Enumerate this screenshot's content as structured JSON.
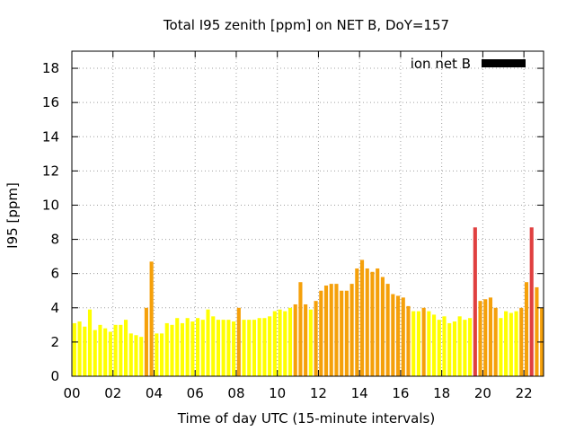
{
  "chart_data": {
    "type": "bar",
    "title": "Total I95 zenith [ppm] on NET B, DoY=157",
    "xlabel": "Time of day UTC (15-minute intervals)",
    "ylabel": "I95 [ppm]",
    "xlim": [
      0,
      22.75
    ],
    "ylim": [
      0,
      19
    ],
    "yticks": [
      0,
      2,
      4,
      6,
      8,
      10,
      12,
      14,
      16,
      18
    ],
    "xticks": [
      {
        "value": 0,
        "label": "00"
      },
      {
        "value": 2,
        "label": "02"
      },
      {
        "value": 4,
        "label": "04"
      },
      {
        "value": 6,
        "label": "06"
      },
      {
        "value": 8,
        "label": "08"
      },
      {
        "value": 10,
        "label": "10"
      },
      {
        "value": 12,
        "label": "12"
      },
      {
        "value": 14,
        "label": "14"
      },
      {
        "value": 16,
        "label": "16"
      },
      {
        "value": 18,
        "label": "18"
      },
      {
        "value": 20,
        "label": "20"
      },
      {
        "value": 22,
        "label": "22"
      }
    ],
    "grid": true,
    "legend": {
      "position": "top-right",
      "entries": [
        {
          "name": "ion net B",
          "color": "#000000"
        }
      ]
    },
    "interval_hours": 0.25,
    "colors": {
      "low": "#ffff00",
      "mid": "#f5a00a",
      "high": "#e04040",
      "frame": "#000000",
      "grid": "#a0a0a0"
    },
    "bars": [
      {
        "t": 0.0,
        "v": 3.1,
        "level": "low"
      },
      {
        "t": 0.25,
        "v": 3.2,
        "level": "low"
      },
      {
        "t": 0.5,
        "v": 2.9,
        "level": "low"
      },
      {
        "t": 0.75,
        "v": 3.9,
        "level": "low"
      },
      {
        "t": 1.0,
        "v": 2.7,
        "level": "low"
      },
      {
        "t": 1.25,
        "v": 3.0,
        "level": "low"
      },
      {
        "t": 1.5,
        "v": 2.8,
        "level": "low"
      },
      {
        "t": 1.75,
        "v": 2.6,
        "level": "low"
      },
      {
        "t": 2.0,
        "v": 3.0,
        "level": "low"
      },
      {
        "t": 2.25,
        "v": 3.0,
        "level": "low"
      },
      {
        "t": 2.5,
        "v": 3.3,
        "level": "low"
      },
      {
        "t": 2.75,
        "v": 2.5,
        "level": "low"
      },
      {
        "t": 3.0,
        "v": 2.4,
        "level": "low"
      },
      {
        "t": 3.25,
        "v": 2.3,
        "level": "low"
      },
      {
        "t": 3.5,
        "v": 4.0,
        "level": "mid"
      },
      {
        "t": 3.75,
        "v": 6.7,
        "level": "mid"
      },
      {
        "t": 4.0,
        "v": 2.5,
        "level": "low"
      },
      {
        "t": 4.25,
        "v": 2.5,
        "level": "low"
      },
      {
        "t": 4.5,
        "v": 3.1,
        "level": "low"
      },
      {
        "t": 4.75,
        "v": 3.0,
        "level": "low"
      },
      {
        "t": 5.0,
        "v": 3.4,
        "level": "low"
      },
      {
        "t": 5.25,
        "v": 3.1,
        "level": "low"
      },
      {
        "t": 5.5,
        "v": 3.4,
        "level": "low"
      },
      {
        "t": 5.75,
        "v": 3.2,
        "level": "low"
      },
      {
        "t": 6.0,
        "v": 3.4,
        "level": "low"
      },
      {
        "t": 6.25,
        "v": 3.3,
        "level": "low"
      },
      {
        "t": 6.5,
        "v": 3.9,
        "level": "low"
      },
      {
        "t": 6.75,
        "v": 3.5,
        "level": "low"
      },
      {
        "t": 7.0,
        "v": 3.3,
        "level": "low"
      },
      {
        "t": 7.25,
        "v": 3.3,
        "level": "low"
      },
      {
        "t": 7.5,
        "v": 3.3,
        "level": "low"
      },
      {
        "t": 7.75,
        "v": 3.2,
        "level": "low"
      },
      {
        "t": 8.0,
        "v": 4.0,
        "level": "mid"
      },
      {
        "t": 8.25,
        "v": 3.3,
        "level": "low"
      },
      {
        "t": 8.5,
        "v": 3.3,
        "level": "low"
      },
      {
        "t": 8.75,
        "v": 3.3,
        "level": "low"
      },
      {
        "t": 9.0,
        "v": 3.4,
        "level": "low"
      },
      {
        "t": 9.25,
        "v": 3.4,
        "level": "low"
      },
      {
        "t": 9.5,
        "v": 3.5,
        "level": "low"
      },
      {
        "t": 9.75,
        "v": 3.8,
        "level": "low"
      },
      {
        "t": 10.0,
        "v": 3.9,
        "level": "low"
      },
      {
        "t": 10.25,
        "v": 3.8,
        "level": "low"
      },
      {
        "t": 10.5,
        "v": 4.0,
        "level": "low"
      },
      {
        "t": 10.75,
        "v": 4.2,
        "level": "mid"
      },
      {
        "t": 11.0,
        "v": 5.5,
        "level": "mid"
      },
      {
        "t": 11.25,
        "v": 4.2,
        "level": "mid"
      },
      {
        "t": 11.5,
        "v": 3.9,
        "level": "low"
      },
      {
        "t": 11.75,
        "v": 4.4,
        "level": "mid"
      },
      {
        "t": 12.0,
        "v": 5.0,
        "level": "mid"
      },
      {
        "t": 12.25,
        "v": 5.3,
        "level": "mid"
      },
      {
        "t": 12.5,
        "v": 5.4,
        "level": "mid"
      },
      {
        "t": 12.75,
        "v": 5.4,
        "level": "mid"
      },
      {
        "t": 13.0,
        "v": 5.0,
        "level": "mid"
      },
      {
        "t": 13.25,
        "v": 5.0,
        "level": "mid"
      },
      {
        "t": 13.5,
        "v": 5.4,
        "level": "mid"
      },
      {
        "t": 13.75,
        "v": 6.3,
        "level": "mid"
      },
      {
        "t": 14.0,
        "v": 6.8,
        "level": "mid"
      },
      {
        "t": 14.25,
        "v": 6.3,
        "level": "mid"
      },
      {
        "t": 14.5,
        "v": 6.1,
        "level": "mid"
      },
      {
        "t": 14.75,
        "v": 6.3,
        "level": "mid"
      },
      {
        "t": 15.0,
        "v": 5.8,
        "level": "mid"
      },
      {
        "t": 15.25,
        "v": 5.4,
        "level": "mid"
      },
      {
        "t": 15.5,
        "v": 4.8,
        "level": "mid"
      },
      {
        "t": 15.75,
        "v": 4.7,
        "level": "mid"
      },
      {
        "t": 16.0,
        "v": 4.6,
        "level": "mid"
      },
      {
        "t": 16.25,
        "v": 4.1,
        "level": "mid"
      },
      {
        "t": 16.5,
        "v": 3.8,
        "level": "low"
      },
      {
        "t": 16.75,
        "v": 3.8,
        "level": "low"
      },
      {
        "t": 17.0,
        "v": 4.0,
        "level": "mid"
      },
      {
        "t": 17.25,
        "v": 3.8,
        "level": "low"
      },
      {
        "t": 17.5,
        "v": 3.6,
        "level": "low"
      },
      {
        "t": 17.75,
        "v": 3.3,
        "level": "low"
      },
      {
        "t": 18.0,
        "v": 3.5,
        "level": "low"
      },
      {
        "t": 18.25,
        "v": 3.1,
        "level": "low"
      },
      {
        "t": 18.5,
        "v": 3.2,
        "level": "low"
      },
      {
        "t": 18.75,
        "v": 3.5,
        "level": "low"
      },
      {
        "t": 19.0,
        "v": 3.3,
        "level": "low"
      },
      {
        "t": 19.25,
        "v": 3.4,
        "level": "low"
      },
      {
        "t": 19.5,
        "v": 8.7,
        "level": "high"
      },
      {
        "t": 19.75,
        "v": 4.4,
        "level": "mid"
      },
      {
        "t": 20.0,
        "v": 4.5,
        "level": "mid"
      },
      {
        "t": 20.25,
        "v": 4.6,
        "level": "mid"
      },
      {
        "t": 20.5,
        "v": 4.0,
        "level": "mid"
      },
      {
        "t": 20.75,
        "v": 3.4,
        "level": "low"
      },
      {
        "t": 21.0,
        "v": 3.8,
        "level": "low"
      },
      {
        "t": 21.25,
        "v": 3.7,
        "level": "low"
      },
      {
        "t": 21.5,
        "v": 3.8,
        "level": "low"
      },
      {
        "t": 21.75,
        "v": 4.0,
        "level": "mid"
      },
      {
        "t": 22.0,
        "v": 5.5,
        "level": "mid"
      },
      {
        "t": 22.25,
        "v": 8.7,
        "level": "high"
      },
      {
        "t": 22.5,
        "v": 5.2,
        "level": "mid"
      },
      {
        "t": 22.75,
        "v": 4.0,
        "level": "mid"
      }
    ]
  }
}
